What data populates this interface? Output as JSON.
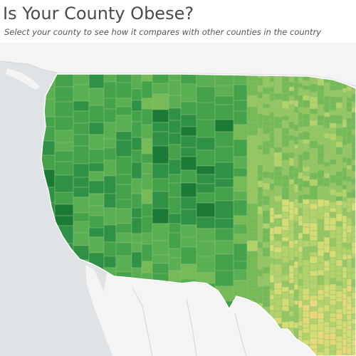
{
  "header": {
    "title": "Is Your County Obese?",
    "subtitle": "Select your county to see how it compares with other counties in the country"
  },
  "map": {
    "region": "contiguous-united-states",
    "feature_type": "county-choropleth",
    "metric": "county obesity rate",
    "color_scale": [
      "#1a7a36",
      "#2f9146",
      "#43a24a",
      "#5aaf52",
      "#76ba58",
      "#95c661",
      "#b4d26a",
      "#d5dc74",
      "#e9d879"
    ],
    "scale_direction": "darker green = lower, yellow = higher",
    "land_color": "#ffffff",
    "water_color": "#dfe3e6",
    "border_color": "#d9d9d9",
    "county_border_color": "#8dbf7a"
  },
  "colors": {
    "title": "#4a4a4a",
    "subtitle": "#555555"
  }
}
